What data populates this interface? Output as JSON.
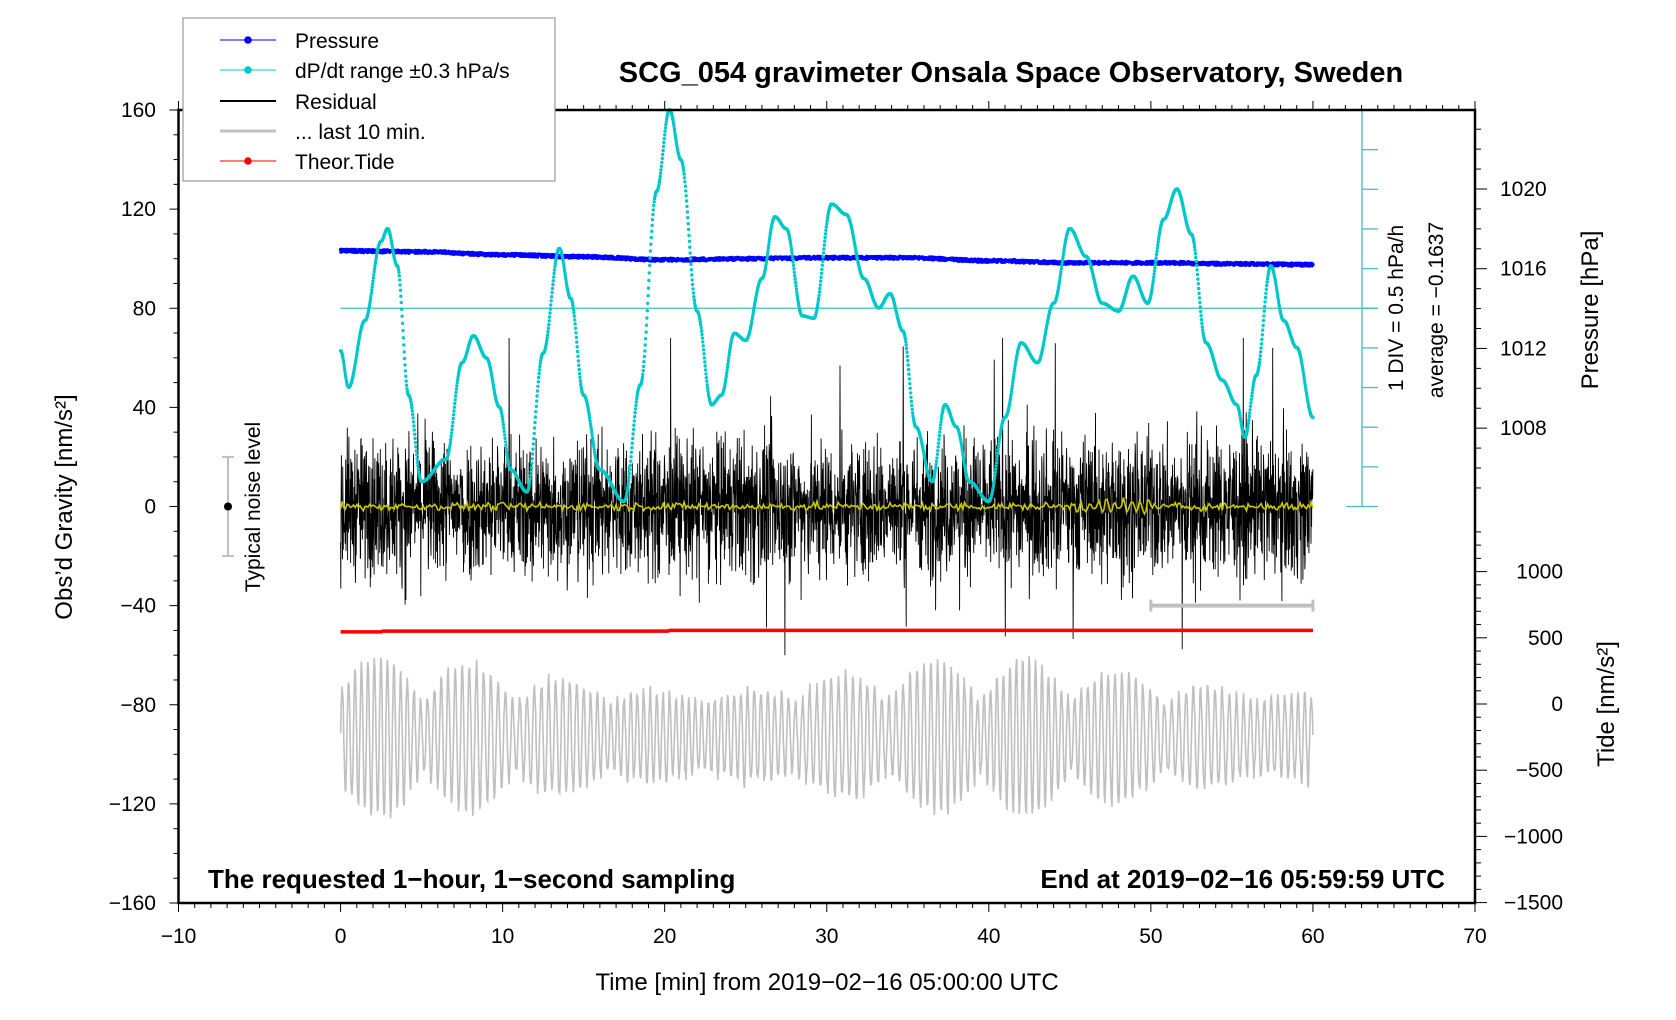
{
  "chart_data": {
    "type": "line",
    "title": "SCG_054 gravimeter Onsala Space Observatory, Sweden",
    "xlabel": "Time [min] from 2019−02−16 05:00:00 UTC",
    "ylabel_left": "Obs’d Gravity [nm/s²]",
    "ylabel_right_pressure": "Pressure [hPa]",
    "ylabel_right_tide": "Tide [nm/s²]",
    "xlim": [
      -10,
      70
    ],
    "ylim_left": [
      -160,
      160
    ],
    "x_ticks": [
      "−10",
      "0",
      "10",
      "20",
      "30",
      "40",
      "50",
      "60",
      "70"
    ],
    "x_tick_values": [
      -10,
      0,
      10,
      20,
      30,
      40,
      50,
      60,
      70
    ],
    "y_ticks_left": [
      "160",
      "120",
      "80",
      "40",
      "0",
      "−40",
      "−80",
      "−120",
      "−160"
    ],
    "y_tick_values_left": [
      160,
      120,
      80,
      40,
      0,
      -40,
      -80,
      -120,
      -160
    ],
    "pressure_ticks": [
      "1020",
      "1016",
      "1012",
      "1008"
    ],
    "pressure_tick_values": [
      1020,
      1016,
      1012,
      1008
    ],
    "tide_ticks": [
      "1000",
      "500",
      "0",
      "−500",
      "−1000",
      "−1500"
    ],
    "tide_tick_values": [
      1000,
      500,
      0,
      -500,
      -1000,
      -1500
    ],
    "grid": false,
    "legend_placement": "top-left",
    "legend": [
      {
        "label": "Pressure",
        "color": "#0000ff",
        "marker": "dot"
      },
      {
        "label": "dP/dt range ±0.3 hPa/s",
        "color": "#00c8c8",
        "marker": "dot"
      },
      {
        "label": "Residual",
        "color": "#000000",
        "marker": "line"
      },
      {
        "label": "... last 10 min.",
        "color": "#c0c0c0",
        "marker": "line"
      },
      {
        "label": "Theor.Tide",
        "color": "#ff0000",
        "marker": "dot"
      }
    ],
    "dpdt_scale_label": "1 DIV = 0.5 hPa/h",
    "dpdt_average_label": "average = −0.1637",
    "dpdt_average": -0.1637,
    "dpdt_div": 0.5,
    "noise_label": "Typical noise level",
    "noise_level": [
      -20,
      20
    ],
    "note_left": "The requested 1−hour, 1−second sampling",
    "note_right": "End at 2019−02−16 05:59:59 UTC",
    "last_10_min_range": [
      50,
      60
    ],
    "series": [
      {
        "name": "Pressure",
        "axis": "pressure",
        "color": "#0000ff",
        "x": [
          0,
          5,
          10,
          15,
          20,
          25,
          30,
          35,
          40,
          45,
          50,
          55,
          60
        ],
        "y": [
          1016.9,
          1016.85,
          1016.7,
          1016.6,
          1016.45,
          1016.5,
          1016.55,
          1016.55,
          1016.4,
          1016.3,
          1016.3,
          1016.25,
          1016.2
        ]
      },
      {
        "name": "dP/dt range ±0.3 hPa/s",
        "axis": "dpdt_hPa_per_h",
        "color": "#00c8c8",
        "x": [
          0,
          0.5,
          1.5,
          2.5,
          2.9,
          3.5,
          4.2,
          5,
          6.5,
          7.5,
          8.2,
          9,
          9.8,
          10.5,
          11.5,
          12.5,
          13.5,
          14.2,
          15,
          16,
          17.5,
          18.5,
          19.5,
          20.3,
          21,
          22,
          22.9,
          23.5,
          24.3,
          25,
          26,
          26.8,
          27.5,
          28.5,
          29.2,
          30.3,
          31.2,
          32.3,
          33.2,
          33.9,
          34.7,
          35.5,
          36.5,
          37.3,
          38,
          38.8,
          40,
          41,
          42,
          43,
          44,
          45,
          46,
          47,
          48,
          48.9,
          49.8,
          50.8,
          51.6,
          52.5,
          53.4,
          54.4,
          55.3,
          55.8,
          56.5,
          57.4,
          58.2,
          59,
          60
        ],
        "y": [
          -0.7,
          -1.16,
          -0.32,
          0.68,
          0.84,
          0.37,
          -1.26,
          -2.35,
          -2.07,
          -0.85,
          -0.51,
          -0.79,
          -1.41,
          -2.2,
          -2.48,
          -0.73,
          0.59,
          -0.04,
          -1.26,
          -2.2,
          -2.6,
          -1.13,
          1.31,
          2.34,
          1.71,
          -0.2,
          -1.38,
          -1.26,
          -0.48,
          -0.57,
          0.21,
          0.99,
          0.84,
          -0.26,
          -0.29,
          1.15,
          1.02,
          0.21,
          -0.16,
          0.02,
          -0.45,
          -1.66,
          -2.35,
          -1.38,
          -1.66,
          -2.35,
          -2.6,
          -1.54,
          -0.6,
          -0.85,
          -0.1,
          0.84,
          0.49,
          -0.1,
          -0.2,
          0.24,
          -0.1,
          0.96,
          1.34,
          0.77,
          -0.6,
          -1.07,
          -1.38,
          -1.79,
          -1.01,
          0.37,
          -0.32,
          -0.66,
          -1.54
        ]
      },
      {
        "name": "Theor.Tide",
        "axis": "tide",
        "color": "#ff0000",
        "x": [
          0,
          2.5,
          2.6,
          20.2,
          20.3,
          60
        ],
        "y": [
          545,
          545,
          550,
          550,
          556,
          556
        ]
      }
    ]
  }
}
